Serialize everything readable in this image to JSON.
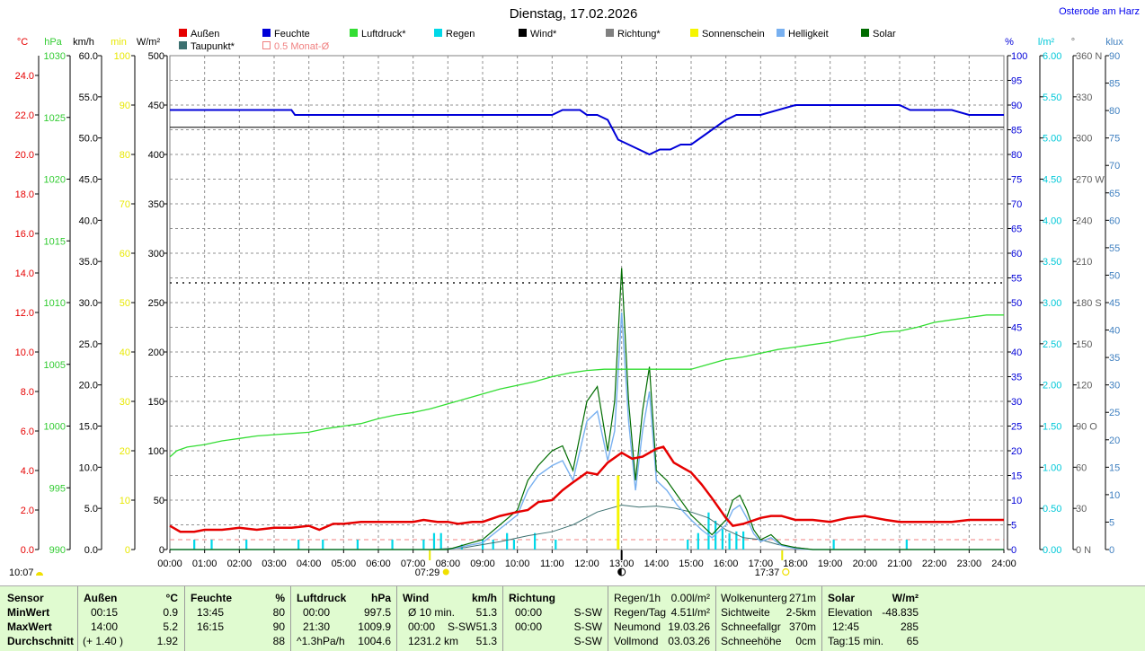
{
  "title": "Dienstag, 17.02.2026",
  "location_link": "Osterode am Harz",
  "colors": {
    "aussen": "#e60000",
    "feuchte": "#0000d8",
    "luftdruck": "#33dd33",
    "regen": "#00d8e8",
    "wind": "#000000",
    "richtung": "#808080",
    "sonnenschein": "#f5f500",
    "helligkeit": "#78b0f0",
    "solar": "#006c00",
    "taupunkt": "#3c7070",
    "monat": "#f08080"
  },
  "legend": [
    {
      "label": "Außen",
      "color": "#e60000"
    },
    {
      "label": "Feuchte",
      "color": "#0000d8"
    },
    {
      "label": "Luftdruck*",
      "color": "#33dd33"
    },
    {
      "label": "Regen",
      "color": "#00d8e8"
    },
    {
      "label": "Wind*",
      "color": "#000000"
    },
    {
      "label": "Richtung*",
      "color": "#808080"
    },
    {
      "label": "Sonnenschein",
      "color": "#f5f500"
    },
    {
      "label": "Helligkeit",
      "color": "#78b0f0"
    },
    {
      "label": "Solar",
      "color": "#006c00"
    },
    {
      "label": "Taupunkt*",
      "color": "#3c7070"
    },
    {
      "label": "0.5 Monat-Ø",
      "color": "#f08080"
    }
  ],
  "chart_data": {
    "type": "line",
    "title": "Dienstag, 17.02.2026",
    "x_unit": "hour",
    "x_range": [
      0,
      24
    ],
    "x_ticks": [
      "00:00",
      "01:00",
      "02:00",
      "03:00",
      "04:00",
      "05:00",
      "06:00",
      "07:00",
      "08:00",
      "09:00",
      "10:00",
      "11:00",
      "12:00",
      "13:00",
      "14:00",
      "15:00",
      "16:00",
      "17:00",
      "18:00",
      "19:00",
      "20:00",
      "21:00",
      "22:00",
      "23:00",
      "24:00"
    ],
    "grid": true,
    "axes": {
      "temp": {
        "unit": "°C",
        "range": [
          0,
          25
        ],
        "ticks": [
          "0.0",
          "2.0",
          "4.0",
          "6.0",
          "8.0",
          "10.0",
          "12.0",
          "14.0",
          "16.0",
          "18.0",
          "20.0",
          "22.0",
          "24.0"
        ],
        "values": [
          0,
          2,
          4,
          6,
          8,
          10,
          12,
          14,
          16,
          18,
          20,
          22,
          24
        ]
      },
      "pressure": {
        "unit": "hPa",
        "range": [
          990,
          1030
        ],
        "ticks": [
          "990",
          "995",
          "1000",
          "1005",
          "1010",
          "1015",
          "1020",
          "1025",
          "1030"
        ],
        "values": [
          990,
          995,
          1000,
          1005,
          1010,
          1015,
          1020,
          1025,
          1030
        ]
      },
      "wind": {
        "unit": "km/h",
        "range": [
          0,
          60
        ],
        "ticks": [
          "0.0",
          "5.0",
          "10.0",
          "15.0",
          "20.0",
          "25.0",
          "30.0",
          "35.0",
          "40.0",
          "45.0",
          "50.0",
          "55.0",
          "60.0"
        ],
        "values": [
          0,
          5,
          10,
          15,
          20,
          25,
          30,
          35,
          40,
          45,
          50,
          55,
          60
        ]
      },
      "minutes": {
        "unit": "min",
        "range": [
          0,
          100
        ],
        "ticks": [
          "0",
          "10",
          "20",
          "30",
          "40",
          "50",
          "60",
          "70",
          "80",
          "90",
          "100"
        ],
        "values": [
          0,
          10,
          20,
          30,
          40,
          50,
          60,
          70,
          80,
          90,
          100
        ]
      },
      "solar": {
        "unit": "W/m²",
        "range": [
          0,
          500
        ],
        "ticks": [
          "0",
          "50",
          "100",
          "150",
          "200",
          "250",
          "300",
          "350",
          "400",
          "450",
          "500"
        ],
        "values": [
          0,
          50,
          100,
          150,
          200,
          250,
          300,
          350,
          400,
          450,
          500
        ]
      },
      "humidity": {
        "unit": "%",
        "range": [
          0,
          100
        ],
        "ticks": [
          "0",
          "5",
          "10",
          "15",
          "20",
          "25",
          "30",
          "35",
          "40",
          "45",
          "50",
          "55",
          "60",
          "65",
          "70",
          "75",
          "80",
          "85",
          "90",
          "95",
          "100"
        ],
        "values": [
          0,
          5,
          10,
          15,
          20,
          25,
          30,
          35,
          40,
          45,
          50,
          55,
          60,
          65,
          70,
          75,
          80,
          85,
          90,
          95,
          100
        ]
      },
      "rain": {
        "unit": "l/m²",
        "range": [
          0,
          6
        ],
        "ticks": [
          "0.00",
          "0.50",
          "1.00",
          "1.50",
          "2.00",
          "2.50",
          "3.00",
          "3.50",
          "4.00",
          "4.50",
          "5.00",
          "5.50",
          "6.00"
        ],
        "values": [
          0,
          0.5,
          1,
          1.5,
          2,
          2.5,
          3,
          3.5,
          4,
          4.5,
          5,
          5.5,
          6
        ]
      },
      "direction": {
        "unit": "°",
        "range": [
          0,
          360
        ],
        "ticks": [
          "0",
          "30",
          "60",
          "90",
          "120",
          "150",
          "180",
          "210",
          "240",
          "270",
          "300",
          "330",
          "360"
        ],
        "values": [
          0,
          30,
          60,
          90,
          120,
          150,
          180,
          210,
          240,
          270,
          300,
          330,
          360
        ],
        "labels": {
          "0": "N",
          "90": "O",
          "180": "S",
          "270": "W",
          "360": "N"
        }
      },
      "lux": {
        "unit": "klux",
        "range": [
          0,
          90
        ],
        "ticks": [
          "0",
          "5",
          "10",
          "15",
          "20",
          "25",
          "30",
          "35",
          "40",
          "45",
          "50",
          "55",
          "60",
          "65",
          "70",
          "75",
          "80",
          "85",
          "90"
        ],
        "values": [
          0,
          5,
          10,
          15,
          20,
          25,
          30,
          35,
          40,
          45,
          50,
          55,
          60,
          65,
          70,
          75,
          80,
          85,
          90
        ]
      }
    },
    "series": [
      {
        "name": "Außen",
        "axis": "temp",
        "x": [
          0,
          0.3,
          0.7,
          1,
          1.5,
          2,
          2.5,
          3,
          3.5,
          4,
          4.3,
          4.7,
          5,
          5.5,
          6,
          6.5,
          7,
          7.3,
          7.7,
          8,
          8.3,
          8.7,
          9,
          9.5,
          10,
          10.3,
          10.6,
          11,
          11.3,
          11.6,
          12,
          12.3,
          12.6,
          13,
          13.3,
          13.6,
          14,
          14.2,
          14.5,
          15,
          15.3,
          15.6,
          16,
          16.2,
          16.5,
          17,
          17.3,
          17.6,
          18,
          18.5,
          19,
          19.5,
          20,
          20.3,
          20.6,
          21,
          21.5,
          22,
          22.5,
          23,
          23.5,
          24
        ],
        "values": [
          1.2,
          0.9,
          0.9,
          1.0,
          1.0,
          1.1,
          1.0,
          1.1,
          1.1,
          1.2,
          1.0,
          1.3,
          1.3,
          1.4,
          1.4,
          1.4,
          1.4,
          1.5,
          1.4,
          1.4,
          1.3,
          1.4,
          1.4,
          1.7,
          1.9,
          2.0,
          2.4,
          2.5,
          3.0,
          3.4,
          3.9,
          3.8,
          4.4,
          4.9,
          4.6,
          4.7,
          5.1,
          5.2,
          4.4,
          3.9,
          3.3,
          2.6,
          1.6,
          1.2,
          1.3,
          1.6,
          1.7,
          1.7,
          1.5,
          1.5,
          1.4,
          1.6,
          1.7,
          1.6,
          1.5,
          1.4,
          1.4,
          1.4,
          1.4,
          1.5,
          1.5,
          1.5
        ]
      },
      {
        "name": "Feuchte",
        "axis": "humidity",
        "x": [
          0,
          3.5,
          3.6,
          4.5,
          5,
          6,
          7,
          8,
          9,
          10,
          10.8,
          11,
          11.3,
          11.8,
          12,
          12.3,
          12.6,
          12.9,
          13.2,
          13.5,
          13.8,
          14.1,
          14.4,
          14.7,
          15,
          15.4,
          15.8,
          16,
          16.3,
          17,
          18,
          19,
          20,
          21,
          21.3,
          22,
          22.5,
          23,
          23.5,
          24
        ],
        "values": [
          89,
          89,
          88,
          88,
          88,
          88,
          88,
          88,
          88,
          88,
          88,
          88,
          89,
          89,
          88,
          88,
          87,
          83,
          82,
          81,
          80,
          81,
          81,
          82,
          82,
          84,
          86,
          87,
          88,
          88,
          90,
          90,
          90,
          90,
          89,
          89,
          89,
          88,
          88,
          88
        ]
      },
      {
        "name": "Luftdruck*",
        "axis": "pressure",
        "x": [
          0,
          0.2,
          0.5,
          1,
          1.5,
          2,
          2.5,
          3,
          3.5,
          4,
          4.5,
          5,
          5.5,
          6,
          6.5,
          7,
          7.5,
          8,
          8.5,
          9,
          9.5,
          10,
          10.5,
          11,
          11.5,
          12,
          12.5,
          13,
          13.5,
          14,
          14.5,
          15,
          15.5,
          16,
          16.5,
          17,
          17.5,
          18,
          18.5,
          19,
          19.5,
          20,
          20.5,
          21,
          21.5,
          22,
          22.5,
          23,
          23.5,
          24
        ],
        "values": [
          997.5,
          998.0,
          998.3,
          998.5,
          998.8,
          999.0,
          999.2,
          999.3,
          999.4,
          999.5,
          999.8,
          1000.0,
          1000.2,
          1000.6,
          1000.9,
          1001.1,
          1001.4,
          1001.8,
          1002.2,
          1002.6,
          1003.0,
          1003.3,
          1003.6,
          1004.0,
          1004.3,
          1004.5,
          1004.6,
          1004.6,
          1004.6,
          1004.6,
          1004.6,
          1004.6,
          1005.0,
          1005.4,
          1005.6,
          1005.9,
          1006.2,
          1006.4,
          1006.6,
          1006.8,
          1007.1,
          1007.3,
          1007.6,
          1007.7,
          1008.0,
          1008.4,
          1008.6,
          1008.8,
          1009.0,
          1009.0
        ]
      },
      {
        "name": "Solar",
        "axis": "solar",
        "x": [
          0,
          7.5,
          8,
          9,
          10,
          10.3,
          10.6,
          11,
          11.3,
          11.6,
          12,
          12.3,
          12.6,
          12.8,
          13,
          13.2,
          13.4,
          13.6,
          13.8,
          14,
          14.3,
          14.6,
          15,
          15.3,
          15.6,
          16,
          16.2,
          16.4,
          16.6,
          16.8,
          17,
          17.3,
          17.6,
          18,
          18.5,
          24
        ],
        "values": [
          0,
          0,
          0,
          10,
          40,
          70,
          85,
          100,
          105,
          80,
          150,
          165,
          100,
          150,
          285,
          150,
          70,
          140,
          185,
          80,
          70,
          55,
          35,
          25,
          15,
          30,
          50,
          55,
          40,
          20,
          10,
          15,
          5,
          2,
          0,
          0
        ]
      },
      {
        "name": "Helligkeit",
        "axis": "solar",
        "x": [
          0,
          7.5,
          8,
          9,
          10,
          10.3,
          10.6,
          11,
          11.3,
          11.6,
          12,
          12.3,
          12.6,
          12.8,
          13,
          13.2,
          13.4,
          13.6,
          13.8,
          14,
          14.3,
          14.6,
          15,
          15.3,
          15.6,
          16,
          16.2,
          16.4,
          16.6,
          16.8,
          17,
          17.3,
          17.6,
          18,
          18.5,
          24
        ],
        "values": [
          0,
          0,
          0,
          7,
          35,
          60,
          75,
          85,
          90,
          70,
          130,
          140,
          90,
          120,
          240,
          130,
          60,
          120,
          160,
          70,
          60,
          45,
          30,
          20,
          12,
          25,
          40,
          45,
          32,
          16,
          8,
          12,
          4,
          1,
          0,
          0
        ]
      },
      {
        "name": "Taupunkt*",
        "axis": "solar",
        "x": [
          0,
          7.5,
          8.5,
          9.5,
          10.3,
          11,
          11.6,
          12.3,
          13,
          13.5,
          14,
          14.5,
          15,
          15.5,
          16,
          16.5,
          17,
          17.5,
          18,
          18.5,
          24
        ],
        "values": [
          0,
          0,
          2,
          8,
          14,
          18,
          25,
          38,
          45,
          43,
          44,
          42,
          38,
          32,
          20,
          12,
          10,
          5,
          2,
          0,
          0
        ]
      },
      {
        "name": "Regen",
        "axis": "rain",
        "type": "bar",
        "x": [
          0.7,
          1.2,
          2.2,
          3.7,
          4.4,
          5.4,
          6.4,
          7.3,
          7.6,
          7.8,
          8.4,
          9,
          9.3,
          9.7,
          9.9,
          10.5,
          11.1,
          14.9,
          15.2,
          15.5,
          15.7,
          15.9,
          16.1,
          16.3,
          16.5,
          19.1,
          21.2
        ],
        "values": [
          0.12,
          0.12,
          0.12,
          0.12,
          0.12,
          0.12,
          0.12,
          0.12,
          0.2,
          0.2,
          0.06,
          0.12,
          0.12,
          0.2,
          0.12,
          0.2,
          0.12,
          0.12,
          0.2,
          0.45,
          0.35,
          0.25,
          0.2,
          0.22,
          0.22,
          0.12,
          0.12
        ]
      },
      {
        "name": "Sonnenschein",
        "axis": "minutes",
        "type": "bar",
        "x": [
          12.9
        ],
        "values": [
          15
        ]
      },
      {
        "name": "0.5 Monat-Ø",
        "axis": "temp",
        "style": "dashed",
        "x": [
          0,
          24
        ],
        "values": [
          0.5,
          0.5
        ]
      },
      {
        "name": "ref-humidity",
        "axis": "humidity",
        "style": "solid",
        "x": [
          0,
          24
        ],
        "values": [
          85.5,
          85.5
        ]
      },
      {
        "name": "ref-dotted",
        "axis": "solar",
        "style": "dotted",
        "x": [
          0,
          24
        ],
        "values": [
          270,
          270
        ]
      }
    ],
    "markers": {
      "sunrise": "07:29",
      "sunset": "17:37",
      "time_left": "10:07",
      "sunrise_x": 7.48,
      "sunset_x": 17.62,
      "moon_x": 13.0
    }
  },
  "footer": {
    "sensor": {
      "header": "Sensor",
      "rows": [
        "MinWert",
        "MaxWert",
        "Durchschnitt"
      ]
    },
    "aussen": {
      "header": "Außen",
      "unit": "°C",
      "rows": [
        [
          "00:15",
          "0.9"
        ],
        [
          "14:00",
          "5.2"
        ],
        [
          "(+ 1.40 )",
          "1.92"
        ]
      ]
    },
    "feuchte": {
      "header": "Feuchte",
      "unit": "%",
      "rows": [
        [
          "13:45",
          "80"
        ],
        [
          "16:15",
          "90"
        ],
        [
          "",
          "88"
        ]
      ]
    },
    "luftdruck": {
      "header": "Luftdruck",
      "unit": "hPa",
      "rows": [
        [
          "00:00",
          "997.5"
        ],
        [
          "21:30",
          "1009.9"
        ],
        [
          "^1.3hPa/h",
          "1004.6"
        ]
      ]
    },
    "wind": {
      "header": "Wind",
      "unit": "km/h",
      "rows": [
        [
          "Ø 10 min.",
          "",
          "51.3"
        ],
        [
          "00:00",
          "S-SW",
          "51.3"
        ],
        [
          "1231.2 km",
          "",
          "51.3"
        ]
      ]
    },
    "richtung": {
      "header": "Richtung",
      "rows": [
        [
          "00:00",
          "S-SW"
        ],
        [
          "00:00",
          "S-SW"
        ],
        [
          "",
          "S-SW"
        ]
      ]
    },
    "regen": {
      "rows": [
        [
          "Regen/1h",
          "0.00l/m²"
        ],
        [
          "Regen/Tag",
          "4.51l/m²"
        ],
        [
          "Neumond",
          "19.03.26"
        ],
        [
          "Vollmond",
          "03.03.26"
        ]
      ]
    },
    "wolken": {
      "rows": [
        [
          "Wolkenunterg",
          "271m"
        ],
        [
          "Sichtweite",
          "2-5km"
        ],
        [
          "Schneefallgr",
          "370m"
        ],
        [
          "Schneehöhe",
          "0cm"
        ]
      ]
    },
    "solar": {
      "header": "Solar",
      "unit": "W/m²",
      "rows": [
        [
          "Elevation",
          "-48.835"
        ],
        [
          "12:45",
          "285"
        ],
        [
          "Tag:15 min.",
          "65"
        ]
      ]
    }
  }
}
